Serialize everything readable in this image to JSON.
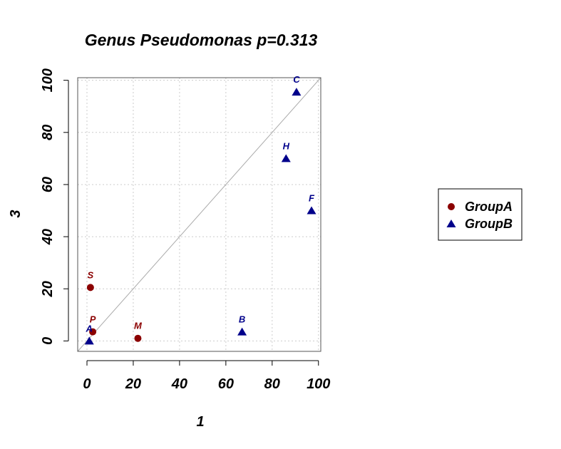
{
  "chart_data": {
    "type": "scatter",
    "title": "Genus Pseudomonas p=0.313",
    "xlabel": "1",
    "ylabel": "3",
    "xlim": [
      -4,
      101
    ],
    "ylim": [
      -4,
      101
    ],
    "xticks": [
      0,
      20,
      40,
      60,
      80,
      100
    ],
    "yticks": [
      0,
      20,
      40,
      60,
      80,
      100
    ],
    "grid": true,
    "reference_line": "y = x",
    "legend_position": "right",
    "series": [
      {
        "name": "GroupA",
        "marker": "circle",
        "color": "#8B0000",
        "points": [
          {
            "label": "S",
            "x": 1.5,
            "y": 20.5
          },
          {
            "label": "P",
            "x": 2.5,
            "y": 3.5
          },
          {
            "label": "M",
            "x": 22,
            "y": 1
          }
        ]
      },
      {
        "name": "GroupB",
        "marker": "triangle",
        "color": "#00008B",
        "points": [
          {
            "label": "A",
            "x": 1,
            "y": 0
          },
          {
            "label": "B",
            "x": 67,
            "y": 3.5
          },
          {
            "label": "C",
            "x": 90.5,
            "y": 95.5
          },
          {
            "label": "H",
            "x": 86,
            "y": 70
          },
          {
            "label": "F",
            "x": 97,
            "y": 50
          }
        ]
      }
    ]
  }
}
